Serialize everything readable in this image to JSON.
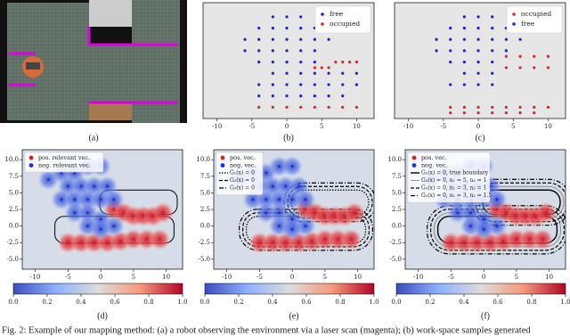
{
  "panel_a": {
    "label": "(a)"
  },
  "chart_data": [
    {
      "type": "scatter",
      "label": "(b)",
      "xlim": [
        -12,
        12.5
      ],
      "ylim": [
        -8,
        12.5
      ],
      "xticks": [
        -10,
        -5,
        0,
        5,
        10
      ],
      "legend": "upper right",
      "background": "#e6e6e6",
      "series": [
        {
          "name": "free",
          "color": "#2020d0",
          "x": [
            -2,
            0,
            2,
            -4,
            -2,
            0,
            2,
            4,
            -6,
            -4,
            -2,
            0,
            2,
            4,
            6,
            -6,
            -4,
            -2,
            0,
            2,
            4,
            -4,
            -2,
            0,
            2,
            4,
            -2,
            0,
            2,
            4,
            6,
            8,
            10,
            -4,
            -2,
            0,
            2,
            4,
            6,
            8,
            10,
            -4,
            -2,
            0,
            2,
            4,
            6,
            8
          ],
          "y": [
            10,
            10,
            10,
            8,
            8,
            8,
            8,
            8,
            6,
            6,
            6,
            6,
            6,
            6,
            6,
            4,
            4,
            4,
            4,
            4,
            4,
            2,
            2,
            2,
            2,
            2,
            0,
            0,
            0,
            0,
            0,
            0,
            0,
            -2,
            -2,
            -2,
            -2,
            -2,
            -2,
            -2,
            -2,
            -4,
            -4,
            -4,
            -4,
            -4,
            -4,
            -4
          ]
        },
        {
          "name": "occupied",
          "color": "#d62728",
          "x": [
            4,
            5,
            6,
            7,
            8,
            9,
            10,
            -4,
            -2,
            0,
            2,
            4,
            6,
            8,
            10
          ],
          "y": [
            1,
            1,
            1,
            2,
            2,
            2,
            2,
            -6,
            -6,
            -6,
            -6,
            -6,
            -6,
            -6,
            -6
          ]
        }
      ]
    },
    {
      "type": "scatter",
      "label": "(c)",
      "xlim": [
        -12,
        12.5
      ],
      "ylim": [
        -8,
        12.5
      ],
      "xticks": [
        -10,
        -5,
        0,
        5,
        10
      ],
      "legend": "upper right",
      "background": "#e6e6e6",
      "series": [
        {
          "name": "occupied",
          "color": "#d62728",
          "x": [
            4,
            6,
            8,
            10,
            4,
            6,
            8,
            10,
            -4,
            -2,
            0,
            2,
            4,
            6,
            8,
            10,
            -4,
            -2,
            0,
            2,
            4,
            6,
            8
          ],
          "y": [
            3,
            3,
            3,
            3,
            1,
            1,
            1,
            1,
            -6,
            -6,
            -6,
            -6,
            -6,
            -6,
            -6,
            -6,
            -7,
            -7,
            -7,
            -7,
            -7,
            -7,
            -7
          ]
        },
        {
          "name": "free",
          "color": "#2020d0",
          "x": [
            -2,
            0,
            2,
            -4,
            -2,
            0,
            2,
            4,
            -6,
            -4,
            -2,
            0,
            2,
            4,
            6,
            -6,
            -4,
            -2,
            0,
            2,
            4,
            -4,
            -2,
            0,
            2,
            -2,
            0,
            2,
            -4,
            -2,
            0,
            2
          ],
          "y": [
            10,
            10,
            10,
            8,
            8,
            8,
            8,
            8,
            6,
            6,
            6,
            6,
            6,
            6,
            6,
            4,
            4,
            4,
            4,
            4,
            4,
            2,
            2,
            2,
            2,
            0,
            0,
            0,
            -2,
            -2,
            -2,
            -2
          ]
        }
      ]
    },
    {
      "type": "heatmap",
      "label": "(d)",
      "xlim": [
        -12,
        12.5
      ],
      "ylim": [
        -6.5,
        11.5
      ],
      "xticks": [
        -10,
        -5,
        0,
        5,
        10
      ],
      "yticks": [
        {
          "value": 10,
          "label": "10.0"
        },
        {
          "value": 7.5,
          "label": "7.5"
        },
        {
          "value": 5,
          "label": "5.0"
        },
        {
          "value": 2.5,
          "label": "2.5"
        },
        {
          "value": 0,
          "label": "0.0"
        },
        {
          "value": -2.5,
          "label": "-2.5"
        },
        {
          "value": -5,
          "label": "-5.0"
        }
      ],
      "colorbar_lim": [
        0,
        1
      ],
      "colorbar_ticks": [
        {
          "value": 0,
          "label": "0.0"
        },
        {
          "value": 0.2,
          "label": "0.2"
        },
        {
          "value": 0.4,
          "label": "0.4"
        },
        {
          "value": 0.6,
          "label": "0.6"
        },
        {
          "value": 0.8,
          "label": "0.8"
        },
        {
          "value": 1,
          "label": "1.0"
        }
      ],
      "background": "#d6dde8",
      "series": [
        {
          "name": "pos. relevant vec.",
          "color": "#e02020",
          "x": [
            2,
            3.5,
            5,
            6.5,
            8,
            9.5,
            -5,
            -3,
            -1,
            1,
            3,
            5,
            7,
            9
          ],
          "y": [
            2.5,
            2,
            1.5,
            1.5,
            1.5,
            2,
            -2.5,
            -2.5,
            -2.5,
            -2.5,
            -2.3,
            -2,
            -2,
            -2
          ]
        },
        {
          "name": "neg. relevant vec.",
          "color": "#2030e0",
          "x": [
            -8,
            -6,
            -4,
            -2,
            0,
            -5,
            -3,
            -1,
            1,
            -6,
            -4,
            -2,
            0,
            2,
            -4,
            -2,
            0,
            2,
            -2,
            0
          ],
          "y": [
            7,
            8,
            8,
            9,
            9,
            6,
            6,
            6,
            6,
            4,
            4,
            4,
            4,
            4,
            2,
            2,
            1,
            0,
            0,
            -0.5
          ]
        }
      ],
      "boundaries": []
    },
    {
      "type": "heatmap",
      "label": "(e)",
      "xlim": [
        -12,
        12.5
      ],
      "ylim": [
        -6.5,
        11.5
      ],
      "xticks": [
        -10,
        -5,
        0,
        5,
        10
      ],
      "yticks": [
        {
          "value": 10,
          "label": "10.0"
        },
        {
          "value": 7.5,
          "label": "7.5"
        },
        {
          "value": 5,
          "label": "5.0"
        },
        {
          "value": 2.5,
          "label": "2.5"
        },
        {
          "value": 0,
          "label": "0.0"
        },
        {
          "value": -2.5,
          "label": "-2.5"
        },
        {
          "value": -5,
          "label": "-5.0"
        }
      ],
      "colorbar_lim": [
        0,
        1
      ],
      "colorbar_ticks": [
        {
          "value": 0,
          "label": "0.0"
        },
        {
          "value": 0.2,
          "label": "0.2"
        },
        {
          "value": 0.4,
          "label": "0.4"
        },
        {
          "value": 0.6,
          "label": "0.6"
        },
        {
          "value": 0.8,
          "label": "0.8"
        },
        {
          "value": 1,
          "label": "1.0"
        }
      ],
      "background": "#d6dde8",
      "series": [
        {
          "name": "pos. vec.",
          "color": "#e02020",
          "x": [
            2,
            3.5,
            5,
            6.5,
            8,
            9.5,
            -5,
            -3,
            -1,
            1,
            3,
            5,
            7,
            9
          ],
          "y": [
            2.5,
            2,
            1.5,
            1.5,
            1.5,
            2,
            -2.5,
            -2.5,
            -2.5,
            -2.5,
            -2.3,
            -2,
            -2,
            -2
          ]
        },
        {
          "name": "neg. vec.",
          "color": "#2030e0",
          "x": [
            -8,
            -6,
            -4,
            -2,
            0,
            -5,
            -3,
            -1,
            1,
            -6,
            -4,
            -2,
            0,
            2,
            -4,
            -2,
            0,
            2,
            -2,
            0
          ],
          "y": [
            7,
            8,
            8,
            9,
            9,
            6,
            6,
            6,
            6,
            4,
            4,
            4,
            4,
            4,
            2,
            2,
            1,
            0,
            0,
            -0.5
          ]
        }
      ],
      "boundaries": [
        {
          "name": "G₁(x) = 0",
          "dash": "dotted"
        },
        {
          "name": "G₂(x) = 0",
          "dash": "dashed"
        },
        {
          "name": "G₃(x) = 0",
          "dash": "dashdot"
        }
      ]
    },
    {
      "type": "heatmap",
      "label": "(f)",
      "xlim": [
        -12,
        12.5
      ],
      "ylim": [
        -6.5,
        11.5
      ],
      "xticks": [
        -10,
        -5,
        0,
        5,
        10
      ],
      "yticks": [
        {
          "value": 10,
          "label": "10.0"
        },
        {
          "value": 7.5,
          "label": "7.5"
        },
        {
          "value": 5,
          "label": "5.0"
        },
        {
          "value": 2.5,
          "label": "2.5"
        },
        {
          "value": 0,
          "label": "0.0"
        },
        {
          "value": -2.5,
          "label": "-2.5"
        },
        {
          "value": -5,
          "label": "-5.0"
        }
      ],
      "colorbar_lim": [
        0,
        1
      ],
      "colorbar_ticks": [
        {
          "value": 0,
          "label": "0.0"
        },
        {
          "value": 0.2,
          "label": "0.2"
        },
        {
          "value": 0.4,
          "label": "0.4"
        },
        {
          "value": 0.6,
          "label": "0.6"
        },
        {
          "value": 0.8,
          "label": "0.8"
        },
        {
          "value": 1,
          "label": "1.0"
        }
      ],
      "background": "#d6dde8",
      "series": [
        {
          "name": "pos. vec.",
          "color": "#e02020",
          "x": [
            2,
            3.5,
            5,
            6.5,
            8,
            9.5,
            -5,
            -3,
            -1,
            1,
            3,
            5,
            7,
            9
          ],
          "y": [
            2.5,
            2,
            1.5,
            1.5,
            1.5,
            2,
            -2.5,
            -2.5,
            -2.5,
            -2.5,
            -2.3,
            -2,
            -2,
            -2
          ]
        },
        {
          "name": "neg. vec.",
          "color": "#2030e0",
          "x": [
            -8,
            -6,
            -4,
            -2,
            0,
            -5,
            -3,
            -1,
            1,
            -6,
            -4,
            -2,
            0,
            2,
            -4,
            -2,
            0,
            2,
            -2,
            0
          ],
          "y": [
            7,
            8,
            8,
            9,
            9,
            6,
            6,
            6,
            6,
            4,
            4,
            4,
            4,
            4,
            2,
            2,
            1,
            0,
            0,
            -0.5
          ]
        }
      ],
      "boundaries": [
        {
          "name": "G₁(x) = 0, true boundary",
          "dash": "solid"
        },
        {
          "name": "G₂(x) = 0, n₁ = 5, n₂ = 1",
          "dash": "thin"
        },
        {
          "name": "G₂(x) = 0, n₁ = 3, n₂ = 1",
          "dash": "dashed"
        },
        {
          "name": "G₂(x) = 0, n₁ = 3, n₂ = 1.5",
          "dash": "dashdot"
        }
      ]
    }
  ],
  "caption": "Fig. 2: Example of our mapping method: (a) a robot observing the environment via a laser scan (magenta); (b) work-space samples generated"
}
